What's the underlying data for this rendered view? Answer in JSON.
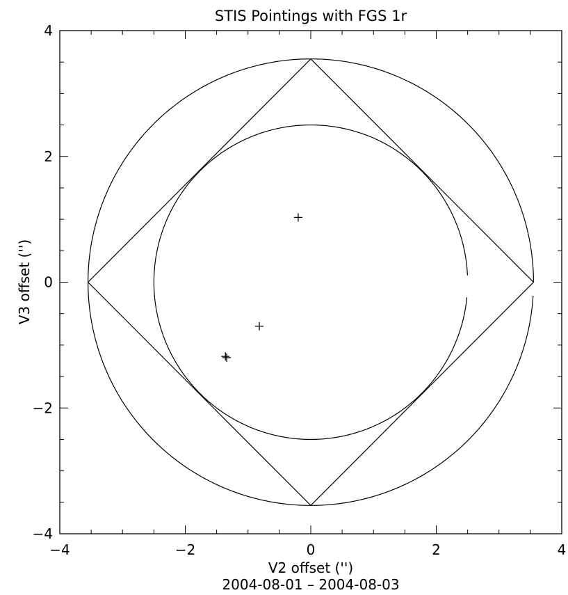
{
  "chart_data": {
    "type": "scatter",
    "title": "STIS Pointings with FGS 1r",
    "xlabel": "V2 offset ('')",
    "ylabel": "V3 offset ('')",
    "date_range": "2004-08-01 – 2004-08-03",
    "xlim": [
      -4,
      4
    ],
    "ylim": [
      -4,
      4
    ],
    "x_ticks": [
      -4,
      -2,
      0,
      2,
      4
    ],
    "y_ticks": [
      -4,
      -2,
      0,
      2,
      4
    ],
    "minor_tick_step": 0.5,
    "grid": false,
    "points": [
      {
        "x": -0.2,
        "y": 1.03
      },
      {
        "x": -0.82,
        "y": -0.7
      },
      {
        "x": -1.36,
        "y": -1.18
      },
      {
        "x": -1.34,
        "y": -1.2
      }
    ],
    "reference_shapes": {
      "outer_circle_radius": 3.55,
      "outer_circle_gap_deg": [
        0,
        -3.5
      ],
      "inner_circle_radius": 2.5,
      "inner_circle_gap_deg": [
        2.5,
        -5.5
      ],
      "diamond_half_diagonal": 3.55
    }
  },
  "colors": {
    "axis": "#000000",
    "background": "#ffffff"
  }
}
